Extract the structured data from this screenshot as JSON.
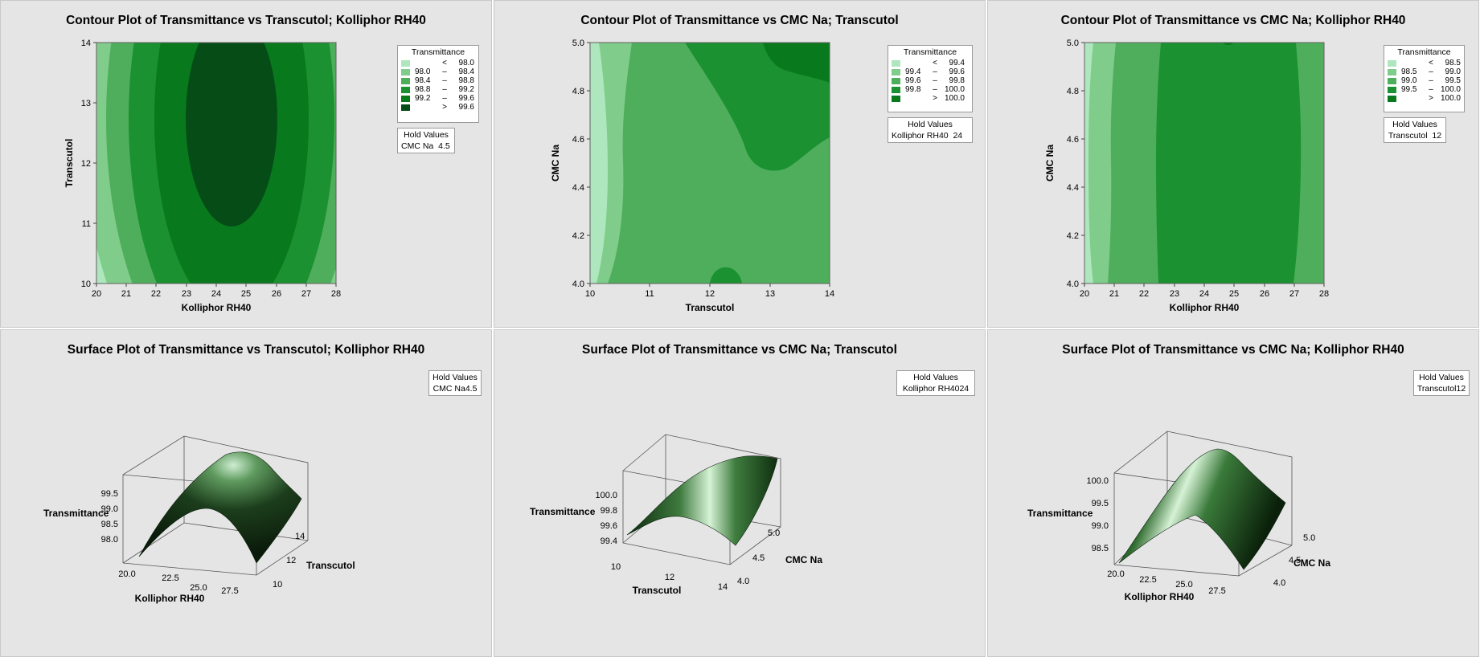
{
  "chart_data": [
    {
      "type": "contour",
      "title": "Contour Plot of Transmittance vs Transcutol; Kolliphor RH40",
      "xlabel": "Kolliphor RH40",
      "ylabel": "Transcutol",
      "xlim": [
        20,
        28
      ],
      "ylim": [
        10,
        14
      ],
      "xticks": [
        "20",
        "21",
        "22",
        "23",
        "24",
        "25",
        "26",
        "27",
        "28"
      ],
      "yticks": [
        "10",
        "11",
        "12",
        "13",
        "14"
      ],
      "x_peak": 24.5,
      "y_peak": 12.8,
      "legend_title": "Transmittance",
      "legend": [
        {
          "lo": "",
          "op": "<",
          "hi": "98.0",
          "color": "#aee6bd"
        },
        {
          "lo": "98.0",
          "op": "–",
          "hi": "98.4",
          "color": "#80cc8a"
        },
        {
          "lo": "98.4",
          "op": "–",
          "hi": "98.8",
          "color": "#4fae5c"
        },
        {
          "lo": "98.8",
          "op": "–",
          "hi": "99.2",
          "color": "#1b9131"
        },
        {
          "lo": "99.2",
          "op": "–",
          "hi": "99.6",
          "color": "#087a1d"
        },
        {
          "lo": "",
          "op": ">",
          "hi": "99.6",
          "color": "#054c16"
        }
      ],
      "hold_title": "Hold Values",
      "hold_label": "CMC Na",
      "hold_value": "4.5"
    },
    {
      "type": "contour",
      "title": "Contour Plot of Transmittance vs CMC Na; Transcutol",
      "xlabel": "Transcutol",
      "ylabel": "CMC Na",
      "xlim": [
        10,
        14
      ],
      "ylim": [
        4.0,
        5.0
      ],
      "xticks": [
        "10",
        "11",
        "12",
        "13",
        "14"
      ],
      "yticks": [
        "4.0",
        "4.2",
        "4.4",
        "4.6",
        "4.8",
        "5.0"
      ],
      "legend_title": "Transmittance",
      "legend": [
        {
          "lo": "",
          "op": "<",
          "hi": "99.4",
          "color": "#aee6bd"
        },
        {
          "lo": "99.4",
          "op": "–",
          "hi": "99.6",
          "color": "#80cc8a"
        },
        {
          "lo": "99.6",
          "op": "–",
          "hi": "99.8",
          "color": "#4fae5c"
        },
        {
          "lo": "99.8",
          "op": "–",
          "hi": "100.0",
          "color": "#1b9131"
        },
        {
          "lo": "",
          "op": ">",
          "hi": "100.0",
          "color": "#087a1d"
        }
      ],
      "hold_title": "Hold Values",
      "hold_label": "Kolliphor RH40",
      "hold_value": "24"
    },
    {
      "type": "contour",
      "title": "Contour Plot of Transmittance vs CMC Na; Kolliphor RH40",
      "xlabel": "Kolliphor RH40",
      "ylabel": "CMC Na",
      "xlim": [
        20,
        28
      ],
      "ylim": [
        4.0,
        5.0
      ],
      "xticks": [
        "20",
        "21",
        "22",
        "23",
        "24",
        "25",
        "26",
        "27",
        "28"
      ],
      "yticks": [
        "4.0",
        "4.2",
        "4.4",
        "4.6",
        "4.8",
        "5.0"
      ],
      "legend_title": "Transmittance",
      "legend": [
        {
          "lo": "",
          "op": "<",
          "hi": "98.5",
          "color": "#aee6bd"
        },
        {
          "lo": "98.5",
          "op": "–",
          "hi": "99.0",
          "color": "#80cc8a"
        },
        {
          "lo": "99.0",
          "op": "–",
          "hi": "99.5",
          "color": "#4fae5c"
        },
        {
          "lo": "99.5",
          "op": "–",
          "hi": "100.0",
          "color": "#1b9131"
        },
        {
          "lo": "",
          "op": ">",
          "hi": "100.0",
          "color": "#087a1d"
        }
      ],
      "hold_title": "Hold Values",
      "hold_label": "Transcutol",
      "hold_value": "12"
    },
    {
      "type": "surface",
      "title": "Surface Plot of Transmittance vs Transcutol; Kolliphor RH40",
      "zlabel": "Transmittance",
      "xlabel": "Kolliphor RH40",
      "ylabel": "Transcutol",
      "zticks": [
        "99.5",
        "99.0",
        "98.5",
        "98.0"
      ],
      "xticks": [
        "20.0",
        "22.5",
        "25.0",
        "27.5"
      ],
      "yticks": [
        "14",
        "12",
        "10"
      ],
      "hold_title": "Hold Values",
      "hold_text": "CMC Na4.5"
    },
    {
      "type": "surface",
      "title": "Surface Plot of Transmittance vs CMC Na; Transcutol",
      "zlabel": "Transmittance",
      "xlabel": "Transcutol",
      "ylabel": "CMC Na",
      "zticks": [
        "100.0",
        "99.8",
        "99.6",
        "99.4"
      ],
      "xticks": [
        "10",
        "12",
        "14"
      ],
      "yticks": [
        "5.0",
        "4.5",
        "4.0"
      ],
      "hold_title": "Hold Values",
      "hold_text": "Kolliphor RH4024"
    },
    {
      "type": "surface",
      "title": "Surface Plot of Transmittance vs CMC Na; Kolliphor RH40",
      "zlabel": "Transmittance",
      "xlabel": "Kolliphor RH40",
      "ylabel": "CMC Na",
      "zticks": [
        "100.0",
        "99.5",
        "99.0",
        "98.5"
      ],
      "xticks": [
        "20.0",
        "22.5",
        "25.0",
        "27.5"
      ],
      "yticks": [
        "5.0",
        "4.5",
        "4.0"
      ],
      "hold_title": "Hold Values",
      "hold_text": "Transcutol12"
    }
  ]
}
